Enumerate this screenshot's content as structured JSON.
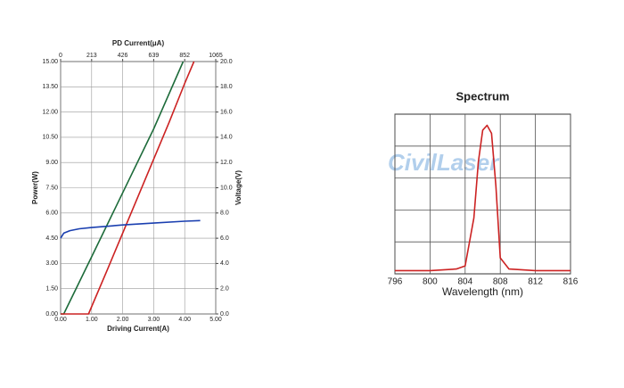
{
  "watermark": "CivilLaser",
  "chart_data": [
    {
      "type": "line",
      "x2label": "PD Current(μA)",
      "xlabel": "Driving Current(A)",
      "ylabel": "Power(W)",
      "y2label": "Voltage(V)",
      "xlim": [
        0,
        5
      ],
      "xticks": [
        {
          "value": 0,
          "label": "0.00"
        },
        {
          "value": 1,
          "label": "1.00"
        },
        {
          "value": 2,
          "label": "2.00"
        },
        {
          "value": 3,
          "label": "3.00"
        },
        {
          "value": 4,
          "label": "4.00"
        },
        {
          "value": 5,
          "label": "5.00"
        }
      ],
      "x2lim": [
        0,
        1065
      ],
      "x2ticks": [
        0,
        213,
        426,
        639,
        852,
        1065
      ],
      "ylim": [
        0,
        15
      ],
      "yticks": [
        {
          "value": 0,
          "label": "0.00"
        },
        {
          "value": 1.5,
          "label": "1.50"
        },
        {
          "value": 3,
          "label": "3.00"
        },
        {
          "value": 4.5,
          "label": "4.50"
        },
        {
          "value": 6,
          "label": "6.00"
        },
        {
          "value": 7.5,
          "label": "7.50"
        },
        {
          "value": 9,
          "label": "9.00"
        },
        {
          "value": 10.5,
          "label": "10.50"
        },
        {
          "value": 12,
          "label": "12.00"
        },
        {
          "value": 13.5,
          "label": "13.50"
        },
        {
          "value": 15,
          "label": "15.00"
        }
      ],
      "y2lim": [
        0,
        20
      ],
      "y2ticks": [
        {
          "value": 0,
          "label": "0.0"
        },
        {
          "value": 2,
          "label": "2.0"
        },
        {
          "value": 4,
          "label": "4.0"
        },
        {
          "value": 6,
          "label": "6.0"
        },
        {
          "value": 8,
          "label": "8.0"
        },
        {
          "value": 10,
          "label": "10.0"
        },
        {
          "value": 12,
          "label": "12.0"
        },
        {
          "value": 14,
          "label": "14.0"
        },
        {
          "value": 16,
          "label": "16.0"
        },
        {
          "value": 18,
          "label": "18.0"
        },
        {
          "value": 20,
          "label": "20.0"
        }
      ],
      "grid": true,
      "series": [
        {
          "color": "#1d6b3a",
          "x": [
            0,
            0.1,
            1,
            2,
            3,
            3.95
          ],
          "values": [
            0,
            0,
            3.4,
            7.2,
            11.0,
            15.0
          ]
        },
        {
          "color": "#cc2222",
          "x": [
            0,
            0.9,
            1.5,
            2,
            2.5,
            3,
            3.5,
            4,
            4.3
          ],
          "values": [
            0,
            0,
            2.6,
            4.8,
            7.0,
            9.2,
            11.4,
            13.7,
            15.0
          ]
        },
        {
          "color": "#1a3fb0",
          "axis": "y2",
          "x": [
            0,
            0.1,
            0.3,
            0.6,
            1,
            1.5,
            2,
            3,
            4,
            4.5
          ],
          "values": [
            6.0,
            6.4,
            6.6,
            6.75,
            6.85,
            6.95,
            7.05,
            7.2,
            7.35,
            7.4
          ]
        }
      ]
    },
    {
      "type": "line",
      "title": "Spectrum",
      "xlabel": "Wavelength (nm)",
      "xlim": [
        796,
        816
      ],
      "xticks": [
        796,
        800,
        804,
        808,
        812,
        816
      ],
      "ylim": [
        0,
        1
      ],
      "grid": true,
      "series": [
        {
          "color": "#cc2222",
          "x": [
            796,
            800,
            803,
            804,
            805,
            805.5,
            806,
            806.5,
            807,
            807.5,
            808,
            809,
            812,
            816
          ],
          "values": [
            0.02,
            0.02,
            0.03,
            0.05,
            0.35,
            0.7,
            0.9,
            0.93,
            0.88,
            0.55,
            0.1,
            0.03,
            0.02,
            0.02
          ]
        }
      ]
    }
  ]
}
